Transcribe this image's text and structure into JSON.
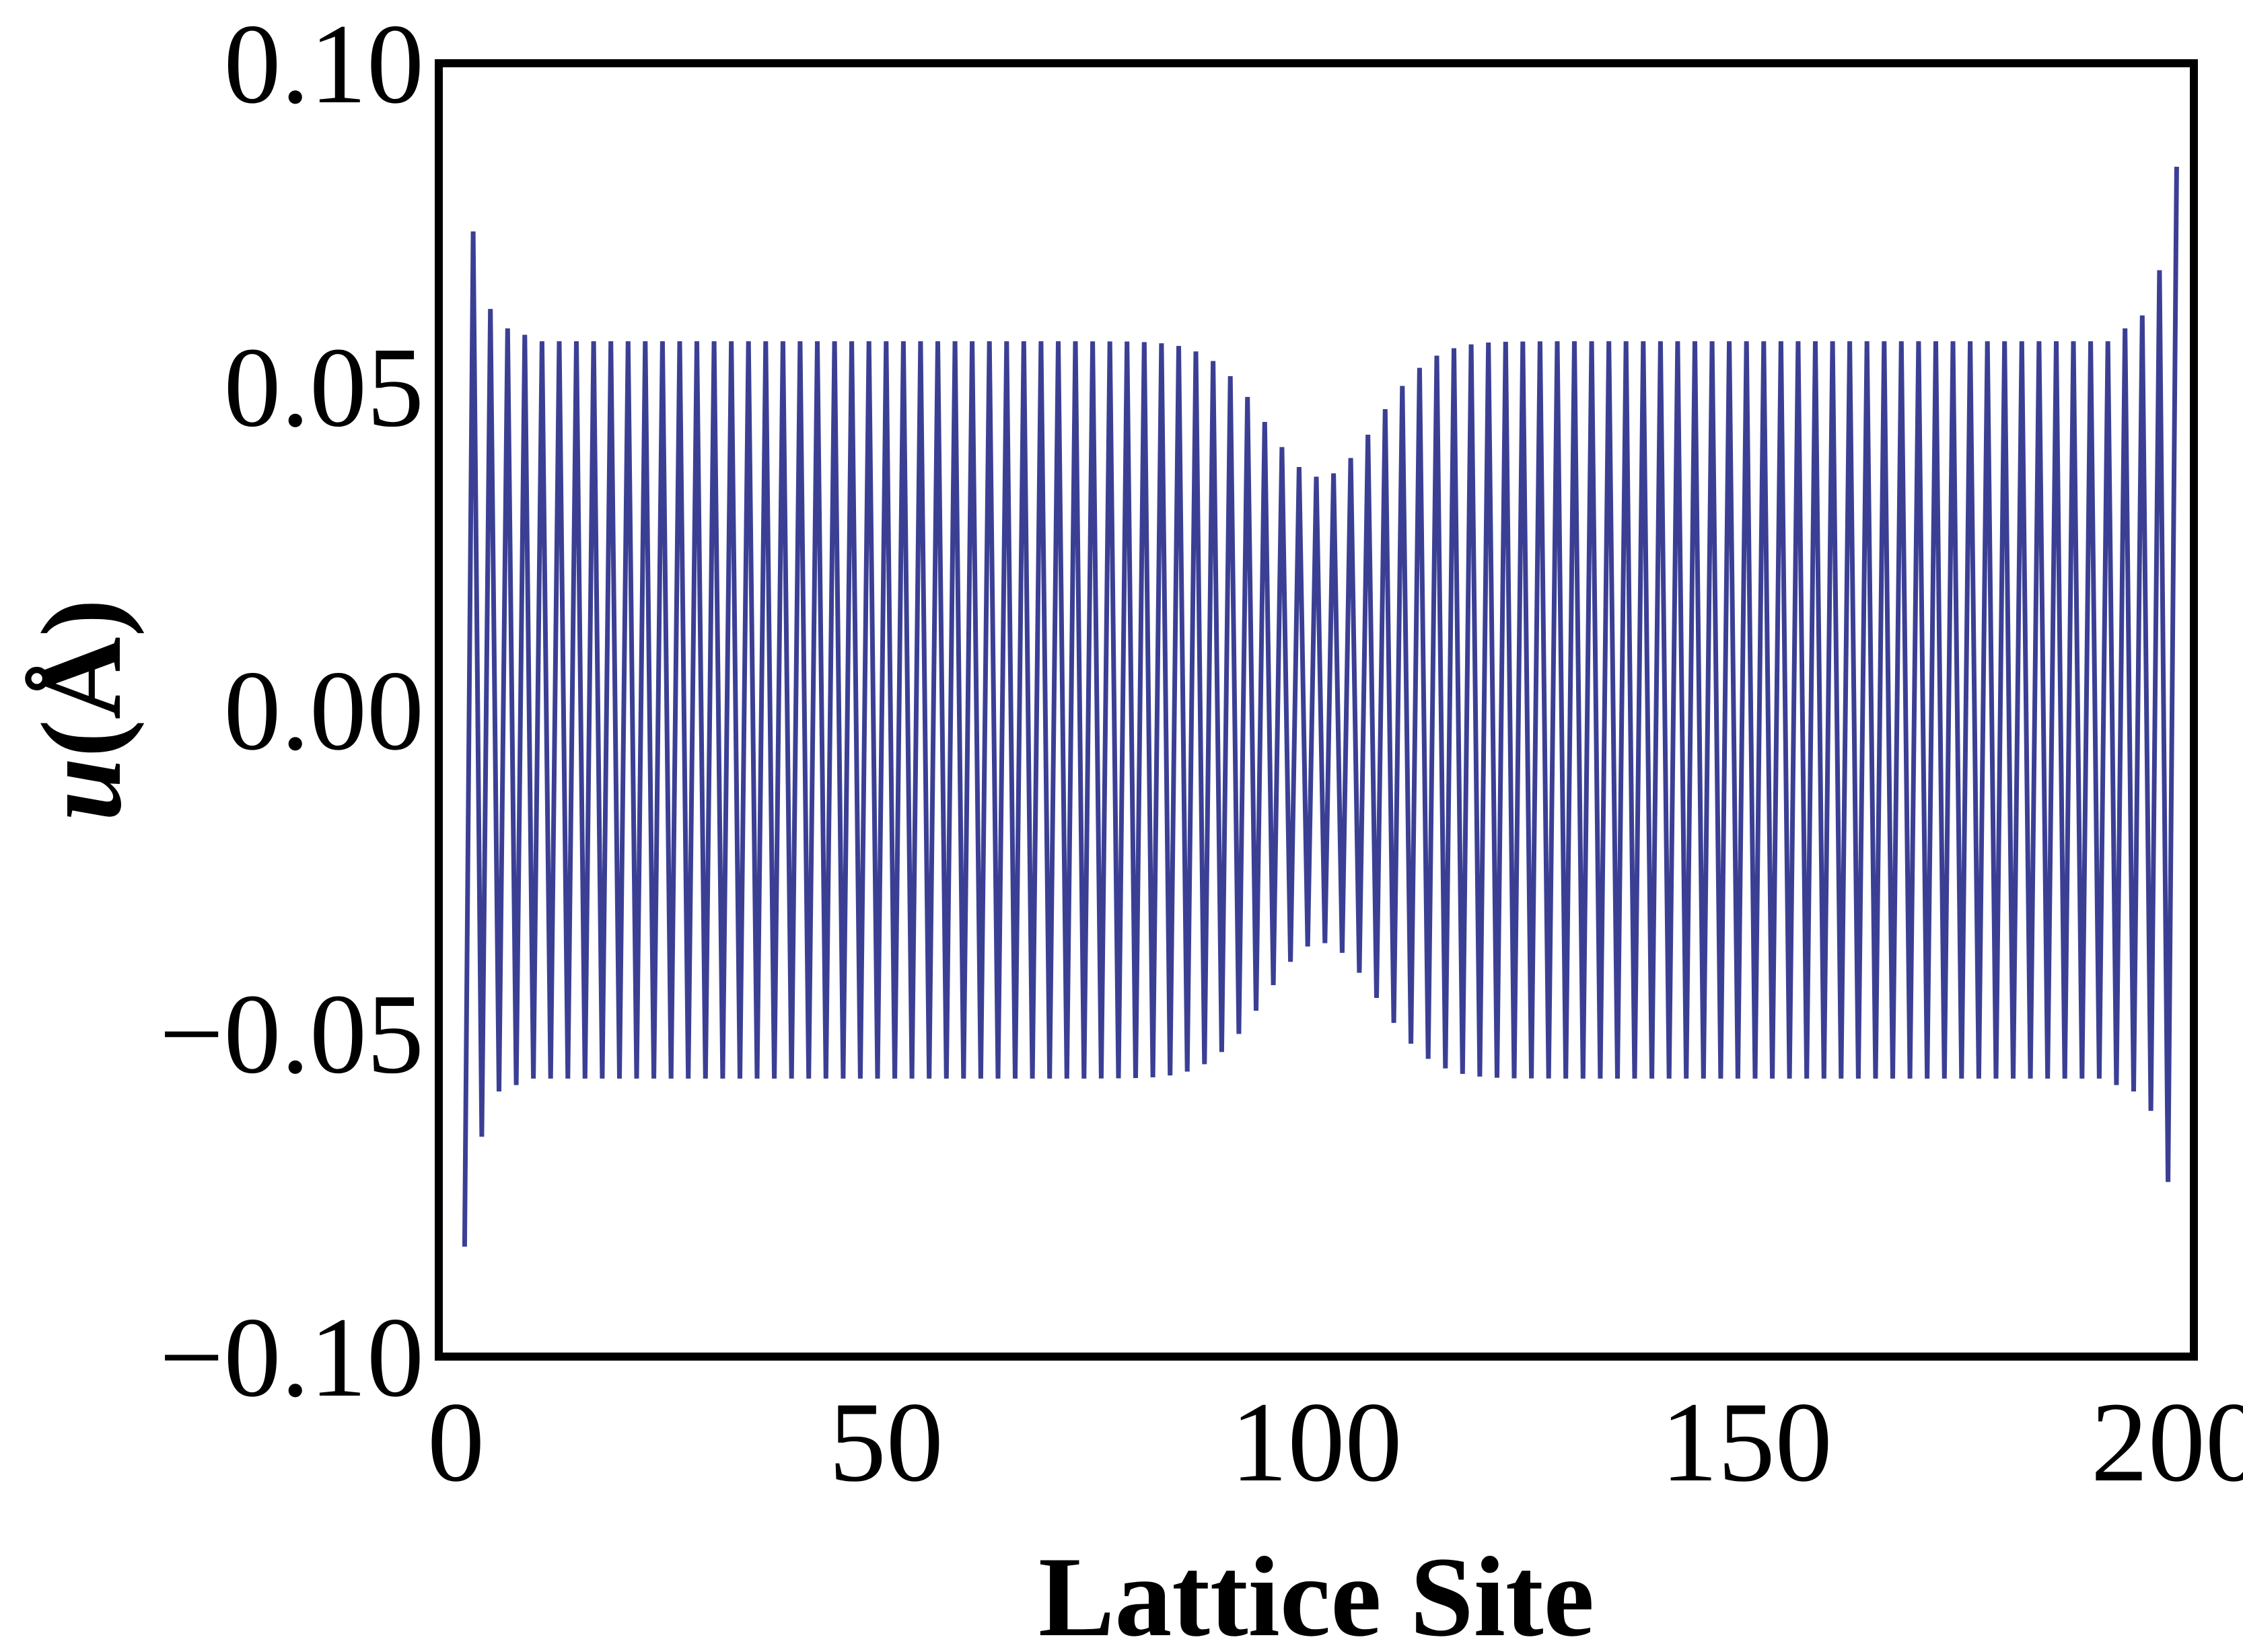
{
  "chart_data": {
    "type": "line",
    "title": "",
    "xlabel": "Lattice Site",
    "ylabel_var": "u",
    "ylabel_unit": "(Å)",
    "xlim": [
      -2,
      202
    ],
    "ylim": [
      -0.1,
      0.1
    ],
    "xticks": [
      0,
      50,
      100,
      150,
      200
    ],
    "xtick_labels": [
      "0",
      "50",
      "100",
      "150",
      "200"
    ],
    "yticks": [
      -0.1,
      -0.05,
      0.0,
      0.05,
      0.1
    ],
    "ytick_labels": [
      "−0.10",
      "−0.05",
      "0.00",
      "0.05",
      "0.10"
    ],
    "grid": false,
    "series": [
      {
        "color": "#3b3f94",
        "x": [
          1,
          200
        ],
        "model": "alternating",
        "odd_site_extremes": {
          "1": -0.083,
          "3": -0.066,
          "5": -0.059,
          "7": -0.058,
          "199": -0.073,
          "197": -0.062,
          "195": -0.059,
          "193": -0.058
        },
        "even_site_extremes": {
          "2": 0.074,
          "4": 0.062,
          "6": 0.059,
          "8": 0.058,
          "200": 0.084,
          "198": 0.068,
          "196": 0.061,
          "194": 0.059
        },
        "bulk_amplitude": 0.057,
        "center_site": 100.5,
        "center_amplitude": 0.036,
        "dip_width": 9
      }
    ]
  }
}
